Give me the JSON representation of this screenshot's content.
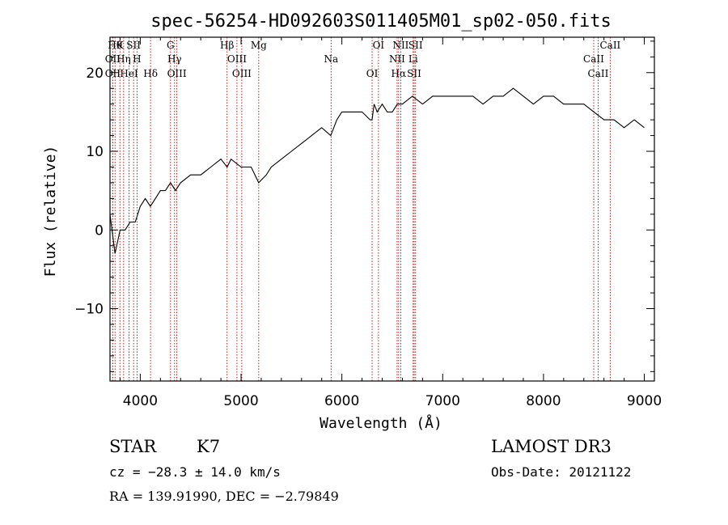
{
  "chart_data": {
    "type": "line",
    "title": "spec-56254-HD092603S011405M01_sp02-050.fits",
    "xlabel": "Wavelength (Å)",
    "ylabel": "Flux (relative)",
    "xlim": [
      3700,
      9100
    ],
    "ylim": [
      -19.2,
      24.5
    ],
    "xticks": [
      4000,
      5000,
      6000,
      7000,
      8000,
      9000
    ],
    "yticks": [
      -10,
      0,
      10,
      20
    ],
    "series": [
      {
        "name": "flux",
        "x": [
          3700,
          3750,
          3800,
          3850,
          3900,
          3950,
          4000,
          4050,
          4100,
          4150,
          4200,
          4250,
          4300,
          4350,
          4400,
          4500,
          4600,
          4700,
          4800,
          4862,
          4900,
          5000,
          5100,
          5175,
          5250,
          5300,
          5400,
          5500,
          5600,
          5700,
          5800,
          5890,
          5950,
          6000,
          6100,
          6200,
          6280,
          6300,
          6320,
          6350,
          6400,
          6450,
          6500,
          6550,
          6563,
          6600,
          6700,
          6800,
          6900,
          7000,
          7100,
          7200,
          7300,
          7400,
          7500,
          7600,
          7700,
          7800,
          7900,
          8000,
          8100,
          8200,
          8300,
          8400,
          8500,
          8600,
          8700,
          8800,
          8900,
          9000
        ],
        "y": [
          2,
          -3,
          0,
          0,
          1,
          1,
          3,
          4,
          3,
          4,
          5,
          5,
          6,
          5,
          6,
          7,
          7,
          8,
          9,
          8,
          9,
          8,
          8,
          6,
          7,
          8,
          9,
          10,
          11,
          12,
          13,
          12,
          14,
          15,
          15,
          15,
          14,
          14,
          16,
          15,
          16,
          15,
          15,
          16,
          16,
          16,
          17,
          16,
          17,
          17,
          17,
          17,
          17,
          16,
          17,
          17,
          18,
          17,
          16,
          17,
          17,
          16,
          16,
          16,
          15,
          14,
          14,
          13,
          14,
          13
        ]
      }
    ],
    "lines": [
      {
        "w": 3750,
        "label": "Hθ"
      },
      {
        "w": 3727,
        "label": "OII"
      },
      {
        "w": 3727,
        "label": "OII"
      },
      {
        "w": 3798,
        "label": "K"
      },
      {
        "w": 3835,
        "label": "Hη"
      },
      {
        "w": 3889,
        "label": "HeI"
      },
      {
        "w": 3934,
        "label": "SII"
      },
      {
        "w": 3968,
        "label": "H"
      },
      {
        "w": 4102,
        "label": "Hδ"
      },
      {
        "w": 4300,
        "label": "G"
      },
      {
        "w": 4340,
        "label": "Hγ"
      },
      {
        "w": 4363,
        "label": "OIII"
      },
      {
        "w": 4861,
        "label": "Hβ"
      },
      {
        "w": 4959,
        "label": "OIII"
      },
      {
        "w": 5007,
        "label": "OIII"
      },
      {
        "w": 5175,
        "label": "Mg"
      },
      {
        "w": 5893,
        "label": "Na"
      },
      {
        "w": 6300,
        "label": "OI"
      },
      {
        "w": 6363,
        "label": "OI"
      },
      {
        "w": 6548,
        "label": "NII"
      },
      {
        "w": 6563,
        "label": "Hα"
      },
      {
        "w": 6584,
        "label": "NII"
      },
      {
        "w": 6707,
        "label": "Li"
      },
      {
        "w": 6717,
        "label": "SII"
      },
      {
        "w": 6731,
        "label": "SII"
      },
      {
        "w": 8498,
        "label": "CaII"
      },
      {
        "w": 8542,
        "label": "CaII"
      },
      {
        "w": 8662,
        "label": "CaII"
      }
    ]
  },
  "info": {
    "object_class": "STAR",
    "subclass": "K7",
    "survey": "LAMOST DR3",
    "cz": "cz = −28.3 ± 14.0 km/s",
    "obs_date": "Obs-Date: 20121122",
    "radec": "RA = 139.91990, DEC =  −2.79849"
  }
}
